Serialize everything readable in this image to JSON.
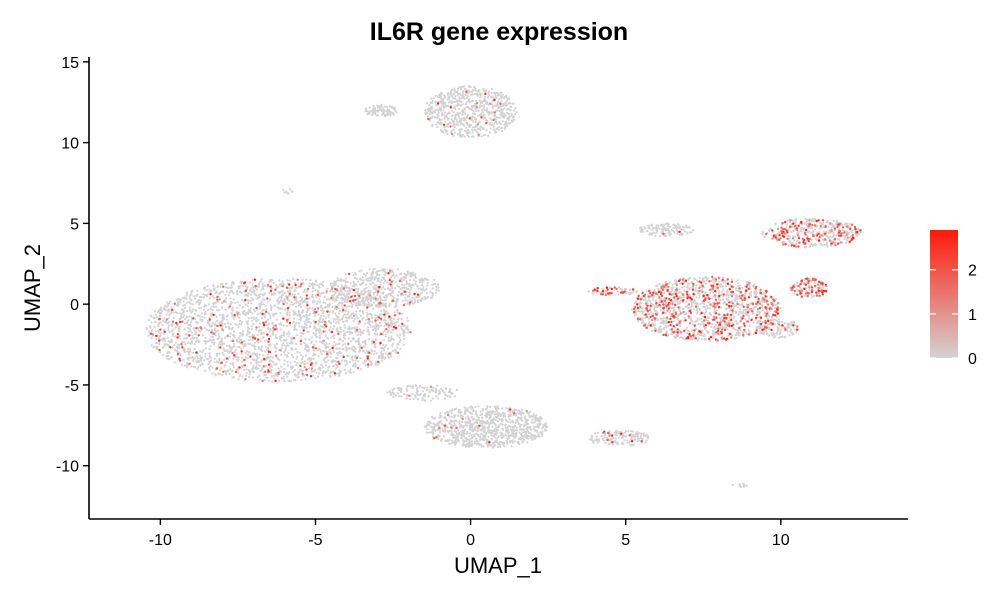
{
  "chart_data": {
    "type": "scatter",
    "title": "IL6R gene expression",
    "xlabel": "UMAP_1",
    "ylabel": "UMAP_2",
    "xlim": [
      -12.3,
      14.1
    ],
    "ylim": [
      -13.3,
      15.3
    ],
    "x_ticks": [
      -10,
      -5,
      0,
      5,
      10
    ],
    "y_ticks": [
      -10,
      -5,
      0,
      5,
      10,
      15
    ],
    "grid": false,
    "legend": {
      "placement": "right",
      "min": 0,
      "max": 2.9,
      "ticks": [
        0,
        1,
        2
      ],
      "low_color": "#d3d3d3",
      "high_color": "#ff1a0a"
    },
    "clusters": [
      {
        "id": "left-large",
        "cx": -6.2,
        "cy": -1.6,
        "rx": 4.3,
        "ry": 3.2,
        "n": 2600,
        "expr_rate": 0.08
      },
      {
        "id": "left-upper-right",
        "cx": -2.8,
        "cy": 1.0,
        "rx": 1.8,
        "ry": 1.2,
        "n": 500,
        "expr_rate": 0.05
      },
      {
        "id": "top-main",
        "cx": 0.0,
        "cy": 11.9,
        "rx": 1.5,
        "ry": 1.6,
        "n": 700,
        "expr_rate": 0.03
      },
      {
        "id": "top-small",
        "cx": -2.9,
        "cy": 12.0,
        "rx": 0.55,
        "ry": 0.4,
        "n": 90,
        "expr_rate": 0.01
      },
      {
        "id": "tiny-left",
        "cx": -5.9,
        "cy": 7.0,
        "rx": 0.2,
        "ry": 0.15,
        "n": 8,
        "expr_rate": 0.0
      },
      {
        "id": "bottom-main",
        "cx": 0.5,
        "cy": -7.6,
        "rx": 2.0,
        "ry": 1.3,
        "n": 900,
        "expr_rate": 0.02
      },
      {
        "id": "bottom-tail",
        "cx": 4.8,
        "cy": -8.3,
        "rx": 1.0,
        "ry": 0.5,
        "n": 150,
        "expr_rate": 0.08
      },
      {
        "id": "bottom-arm",
        "cx": -1.5,
        "cy": -5.5,
        "rx": 1.2,
        "ry": 0.5,
        "n": 120,
        "expr_rate": 0.01
      },
      {
        "id": "right-main",
        "cx": 7.6,
        "cy": -0.3,
        "rx": 2.4,
        "ry": 2.0,
        "n": 1500,
        "expr_rate": 0.22
      },
      {
        "id": "right-upper-left",
        "cx": 6.3,
        "cy": 4.6,
        "rx": 0.9,
        "ry": 0.4,
        "n": 130,
        "expr_rate": 0.02
      },
      {
        "id": "right-upper-arm",
        "cx": 11.0,
        "cy": 4.4,
        "rx": 1.6,
        "ry": 0.9,
        "n": 450,
        "expr_rate": 0.25
      },
      {
        "id": "right-bright",
        "cx": 10.9,
        "cy": 1.0,
        "rx": 0.6,
        "ry": 0.6,
        "n": 140,
        "expr_rate": 0.5
      },
      {
        "id": "right-lower",
        "cx": 9.9,
        "cy": -1.5,
        "rx": 0.7,
        "ry": 0.6,
        "n": 120,
        "expr_rate": 0.15
      },
      {
        "id": "right-left-arm",
        "cx": 4.6,
        "cy": 0.8,
        "rx": 0.8,
        "ry": 0.25,
        "n": 70,
        "expr_rate": 0.3
      },
      {
        "id": "bottom-right-tiny",
        "cx": 8.7,
        "cy": -11.2,
        "rx": 0.25,
        "ry": 0.12,
        "n": 12,
        "expr_rate": 0.0
      }
    ]
  }
}
